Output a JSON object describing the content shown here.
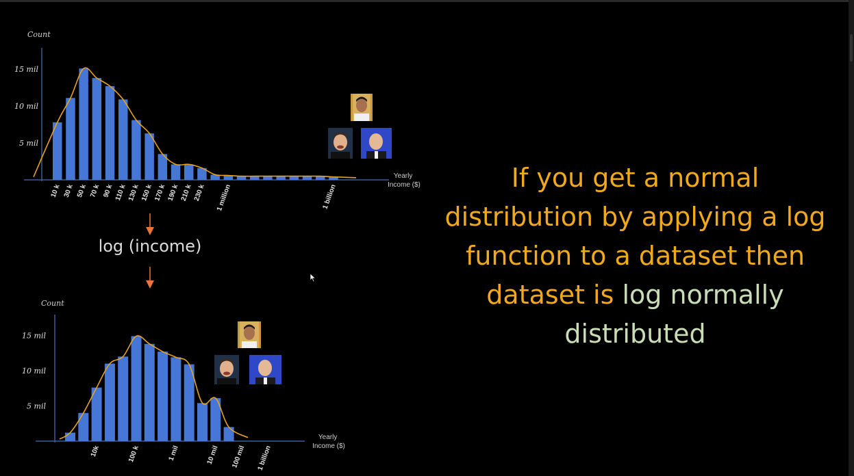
{
  "caption": {
    "part1": "If you get a normal distribution by applying a log function to a dataset then dataset is ",
    "part2": "log normally distributed"
  },
  "transform_label": "log (income)",
  "colors": {
    "bar": "#4676d6",
    "curve": "#e6a21e",
    "arrow": "#e8743a",
    "caption": "#f0a81c",
    "caption_highlight": "#c9dcb6",
    "axis": "#3b5f9c"
  },
  "icons": [
    "person-photo-icon",
    "person-photo-icon",
    "person-photo-icon",
    "person-photo-icon",
    "person-photo-icon",
    "person-photo-icon"
  ],
  "chart_data": [
    {
      "type": "bar",
      "ylabel": "Count",
      "xlabel": "Yearly Income ($)",
      "ylim": [
        0,
        16.5
      ],
      "ytick_labels": [
        "5 mil",
        "10 mil",
        "15 mil"
      ],
      "yticks": [
        5,
        10,
        15
      ],
      "xtick_labels": [
        "10 k",
        "30 k",
        "50 k",
        "70 k",
        "90 k",
        "110 k",
        "130 k",
        "150 k",
        "170 k",
        "190 k",
        "210 k",
        "230 k",
        "1 million",
        "1 billion"
      ],
      "xtick_bar_index": [
        0,
        1,
        2,
        3,
        4,
        5,
        6,
        7,
        8,
        9,
        10,
        11,
        13,
        21
      ],
      "values": [
        7.8,
        11.1,
        15.1,
        13.8,
        12.7,
        10.9,
        8.1,
        6.3,
        3.5,
        2.1,
        2.1,
        1.6,
        0.7,
        0.6,
        0.5,
        0.5,
        0.5,
        0.5,
        0.5,
        0.5,
        0.5,
        0.4
      ],
      "grid": false
    },
    {
      "type": "bar",
      "ylabel": "Count",
      "xlabel": "Yearly Income ($)",
      "ylim": [
        0,
        16.5
      ],
      "ytick_labels": [
        "5 mil",
        "10 mil",
        "15 mil"
      ],
      "yticks": [
        5,
        10,
        15
      ],
      "xtick_labels": [
        "10k",
        "100 k",
        "1 mil",
        "10 mil",
        "100 mil",
        "1 billion"
      ],
      "xtick_bar_index": [
        2,
        5,
        8,
        11,
        13,
        15
      ],
      "values": [
        1.2,
        4.0,
        7.6,
        11.0,
        12.0,
        14.9,
        13.8,
        12.7,
        11.9,
        10.9,
        5.4,
        6.1,
        2.0
      ],
      "grid": false
    }
  ]
}
